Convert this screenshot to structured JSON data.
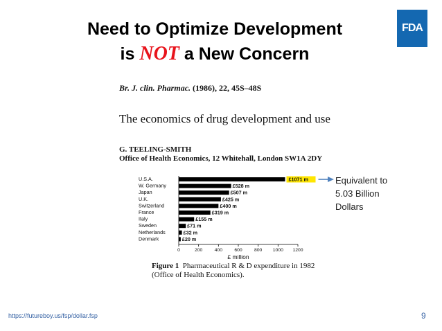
{
  "slide": {
    "title_line1": "Need to Optimize Development",
    "title_is": "is",
    "title_not": "NOT",
    "title_rest": "a New Concern",
    "logo_text": "FDA",
    "url": "https://futureboy.us/fsp/dollar.fsp",
    "page_number": "9",
    "annotation_lines": [
      "Equivalent to",
      "5.03 Billion",
      "Dollars"
    ]
  },
  "paper": {
    "journal": "Br. J. clin. Pharmac.",
    "citation_rest": "(1986), 22, 45S–48S",
    "title": "The economics of drug development and use",
    "author": "G. TEELING-SMITH",
    "affiliation": "Office of Health Economics, 12 Whitehall, London SW1A 2DY",
    "figure_label": "Figure 1",
    "figure_caption_line1": "Pharmaceutical R & D expenditure in 1982",
    "figure_caption_line2": "(Office of Health Economics)."
  },
  "chart_data": {
    "type": "bar",
    "orientation": "horizontal",
    "categories": [
      "U.S.A.",
      "W. Germany",
      "Japan",
      "U.K.",
      "Switzerland",
      "France",
      "Italy",
      "Sweden",
      "Netherlands",
      "Denmark"
    ],
    "values": [
      1071,
      528,
      507,
      425,
      400,
      319,
      155,
      71,
      32,
      20
    ],
    "value_labels": [
      "£1071 m",
      "£528 m",
      "£507 m",
      "£425 m",
      "£400 m",
      "£319 m",
      "£155 m",
      "£71 m",
      "£32 m",
      "£20 m"
    ],
    "highlight_index": 0,
    "highlight_color": "#ffe600",
    "bar_color": "#000000",
    "arrow_color": "#4f81bd",
    "xlabel": "£ million",
    "xticks": [
      "0",
      "200",
      "400",
      "600",
      "800",
      "1000",
      "1200"
    ],
    "xlim": [
      0,
      1200
    ]
  }
}
